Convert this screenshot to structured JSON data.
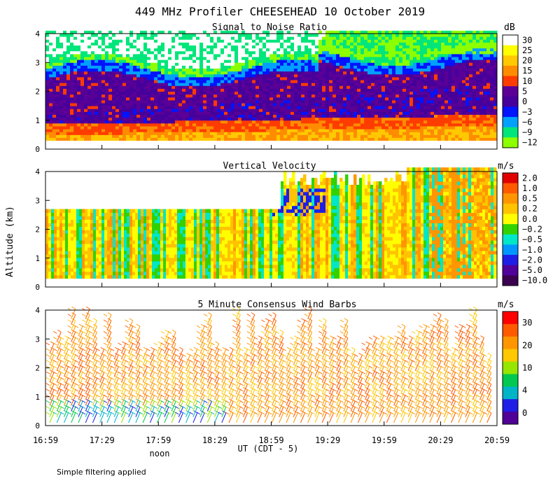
{
  "title": "449 MHz Profiler CHEESEHEAD 10 October 2019",
  "ylabel": "Altitude (km)",
  "xlabel": "UT  (CDT - 5)",
  "noon_label": "noon",
  "x_ticks": [
    "16:59",
    "17:29",
    "17:59",
    "18:29",
    "18:59",
    "19:29",
    "19:59",
    "20:29",
    "20:59"
  ],
  "footnote": "Simple filtering applied",
  "chart_data": [
    {
      "type": "heatmap",
      "title": "Signal to Noise Ratio",
      "ylim": [
        0,
        4
      ],
      "yticks": [
        "0",
        "1",
        "2",
        "3",
        "4"
      ],
      "units": "dB",
      "colorbar": {
        "labels": [
          "30",
          "25",
          "20",
          "15",
          "10",
          "5",
          "0",
          "−3",
          "−6",
          "−9",
          "−12"
        ],
        "colors": [
          "#ffffff",
          "#ffff00",
          "#ffc800",
          "#ff8c00",
          "#ff3c00",
          "#5a0096",
          "#46009b",
          "#0014ff",
          "#00a0ff",
          "#00e67a",
          "#8cff00"
        ]
      }
    },
    {
      "type": "heatmap",
      "title": "Vertical Velocity",
      "ylim": [
        0,
        4
      ],
      "yticks": [
        "0",
        "1",
        "2",
        "3",
        "4"
      ],
      "units": "m/s",
      "colorbar": {
        "labels": [
          "2.0",
          "1.0",
          "0.5",
          "0.2",
          "0.0",
          "−0.2",
          "−0.5",
          "−1.0",
          "−2.0",
          "−5.0",
          "−10.0"
        ],
        "colors": [
          "#e10000",
          "#ff5a00",
          "#ff9600",
          "#ffc300",
          "#ffff00",
          "#32d200",
          "#00e6c8",
          "#0096ff",
          "#1e1ee6",
          "#50009b",
          "#3c0050"
        ]
      }
    },
    {
      "type": "scatter",
      "title": "5 Minute Consensus Wind Barbs",
      "ylim": [
        0,
        4
      ],
      "yticks": [
        "0",
        "1",
        "2",
        "3",
        "4"
      ],
      "units": "m/s",
      "colorbar": {
        "labels": [
          "30",
          "20",
          "10",
          "4",
          "0"
        ],
        "colors": [
          "#ff0000",
          "#ff5a00",
          "#ff9600",
          "#ffc800",
          "#96e600",
          "#00c850",
          "#00b4c8",
          "#1e1ee6",
          "#500096"
        ]
      }
    }
  ]
}
